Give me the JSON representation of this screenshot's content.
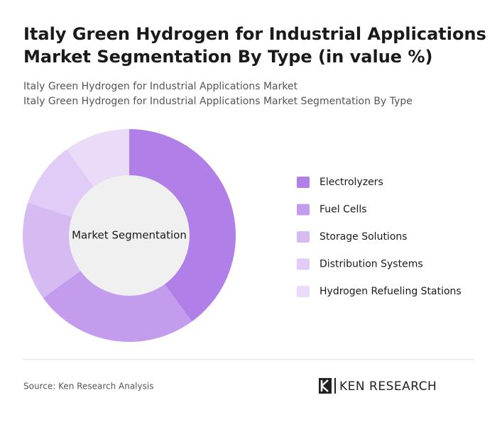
{
  "chart_data": {
    "type": "donut",
    "title": [
      "Italy Green Hydrogen for Industrial Applications",
      "Market Segmentation By Type (in value %)"
    ],
    "subtitle": [
      "Italy Green Hydrogen for Industrial Applications Market",
      "Italy Green Hydrogen for Industrial Applications Market Segmentation By Type"
    ],
    "center_label": "Market Segmentation",
    "categories": [
      "Electrolyzers",
      "Fuel Cells",
      "Storage Solutions",
      "Distribution Systems",
      "Hydrogen Refueling Stations"
    ],
    "values": [
      40,
      25,
      15,
      10,
      10
    ],
    "colors": [
      "#b07fe8",
      "#c49cee",
      "#d6bbf3",
      "#e0ccf6",
      "#eadcf9"
    ],
    "source": "Source: Ken Research Analysis",
    "logo": "KEN RESEARCH"
  }
}
